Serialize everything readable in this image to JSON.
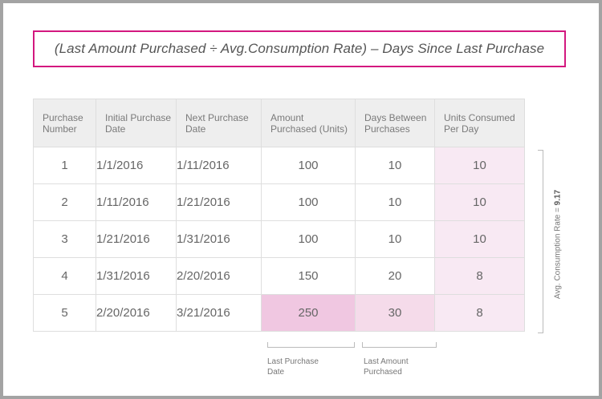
{
  "formula": "(Last Amount Purchased ÷ Avg.Consumption Rate) – Days Since Last Purchase",
  "table": {
    "headers": {
      "num": [
        "Purchase",
        "Number"
      ],
      "init": [
        "Initial Purchase",
        "Date"
      ],
      "next": [
        "Next Purchase",
        "Date"
      ],
      "amt": [
        "Amount",
        "Purchased (Units)"
      ],
      "days": [
        "Days Between",
        "Purchases"
      ],
      "units": [
        "Units Consumed",
        "Per Day"
      ]
    },
    "rows": [
      {
        "num": "1",
        "init": "1/1/2016",
        "next": "1/11/2016",
        "amt": "100",
        "days": "10",
        "units": "10"
      },
      {
        "num": "2",
        "init": "1/11/2016",
        "next": "1/21/2016",
        "amt": "100",
        "days": "10",
        "units": "10"
      },
      {
        "num": "3",
        "init": "1/21/2016",
        "next": "1/31/2016",
        "amt": "100",
        "days": "10",
        "units": "10"
      },
      {
        "num": "4",
        "init": "1/31/2016",
        "next": "2/20/2016",
        "amt": "150",
        "days": "20",
        "units": "8"
      },
      {
        "num": "5",
        "init": "2/20/2016",
        "next": "3/21/2016",
        "amt": "250",
        "days": "30",
        "units": "8"
      }
    ]
  },
  "annotations": {
    "last_purchase": [
      "Last Purchase",
      "Date"
    ],
    "last_amount": [
      "Last Amount",
      "Purchased"
    ],
    "side_label_prefix": "Avg. Consumption Rate = ",
    "side_label_value": "9.17"
  },
  "colors": {
    "accent": "#d3187f",
    "highlight_strong": "#f0c7e1",
    "highlight_light": "#f8e9f3"
  }
}
